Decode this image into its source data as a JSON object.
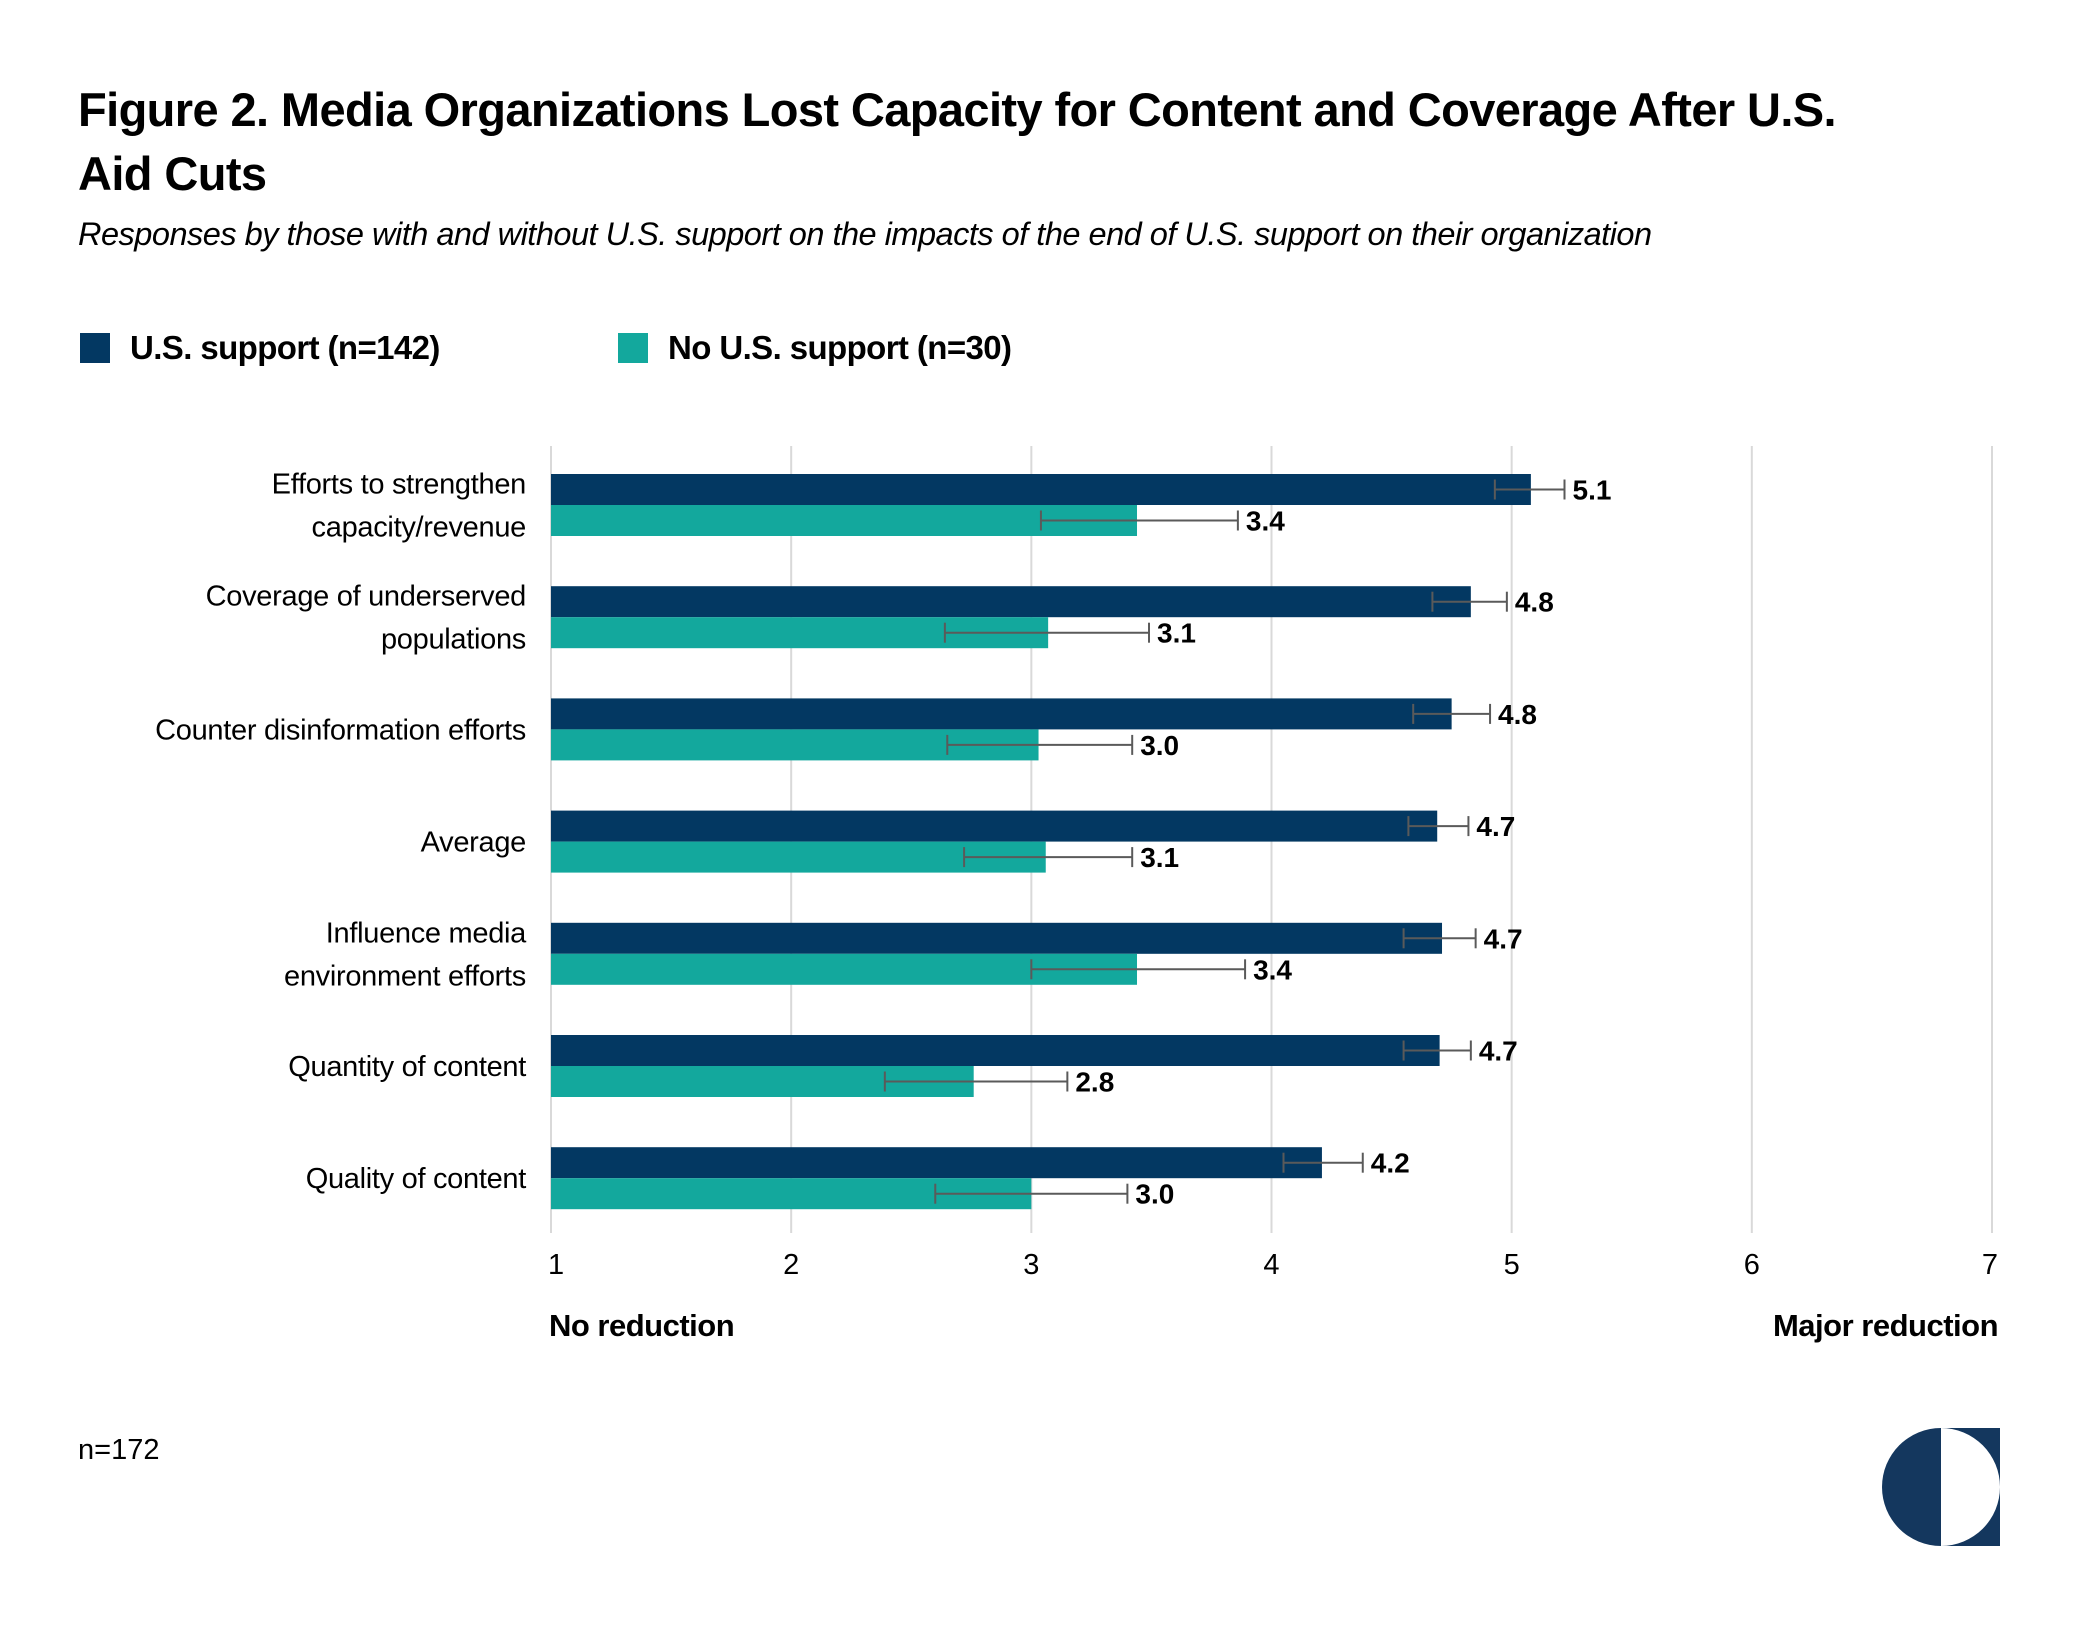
{
  "title": "Figure 2. Media Organizations Lost Capacity for Content and Coverage After U.S. Aid Cuts",
  "subtitle": "Responses by those with and without U.S. support on the impacts of the end of U.S. support on their organization",
  "legend": [
    {
      "label": "U.S. support (n=142)",
      "color": "#033862"
    },
    {
      "label": "No U.S. support (n=30)",
      "color": "#13A89D"
    }
  ],
  "footnote": "n=172",
  "logo": {
    "icon": "half-circle-logo-icon",
    "color": "#14375E"
  },
  "chart_data": {
    "type": "bar",
    "orientation": "horizontal",
    "title": "Figure 2. Media Organizations Lost Capacity for Content and Coverage After U.S. Aid Cuts",
    "subtitle": "Responses by those with and without U.S. support on the impacts of the end of U.S. support on their organization",
    "categories": [
      [
        "Efforts to strengthen",
        "capacity/revenue"
      ],
      [
        "Coverage of underserved",
        "populations"
      ],
      [
        "Counter disinformation efforts"
      ],
      [
        "Average"
      ],
      [
        "Influence media",
        "environment efforts"
      ],
      [
        "Quantity of content"
      ],
      [
        "Quality of content"
      ]
    ],
    "series": [
      {
        "name": "U.S. support (n=142)",
        "color": "#033862",
        "values": [
          5.08,
          4.83,
          4.75,
          4.69,
          4.71,
          4.7,
          4.21
        ],
        "labels": [
          "5.1",
          "4.8",
          "4.8",
          "4.7",
          "4.7",
          "4.7",
          "4.2"
        ],
        "error_low": [
          4.93,
          4.67,
          4.59,
          4.57,
          4.55,
          4.55,
          4.05
        ],
        "error_high": [
          5.22,
          4.98,
          4.91,
          4.82,
          4.85,
          4.83,
          4.38
        ]
      },
      {
        "name": "No U.S. support (n=30)",
        "color": "#13A89D",
        "values": [
          3.44,
          3.07,
          3.03,
          3.06,
          3.44,
          2.76,
          3.0
        ],
        "labels": [
          "3.4",
          "3.1",
          "3.0",
          "3.1",
          "3.4",
          "2.8",
          "3.0"
        ],
        "error_low": [
          3.04,
          2.64,
          2.65,
          2.72,
          3.0,
          2.39,
          2.6
        ],
        "error_high": [
          3.86,
          3.49,
          3.42,
          3.42,
          3.89,
          3.15,
          3.4
        ]
      }
    ],
    "xlim": [
      1,
      7
    ],
    "xticks": [
      "1",
      "2",
      "3",
      "4",
      "5",
      "6",
      "7"
    ],
    "x_min_label": "No reduction",
    "x_max_label": "Major reduction",
    "xlabel": "",
    "ylabel": "",
    "grid": "vertical",
    "legend_position": "top-left",
    "error_bar_color": "#5a5a5a",
    "grid_color": "#d9d9d9"
  }
}
